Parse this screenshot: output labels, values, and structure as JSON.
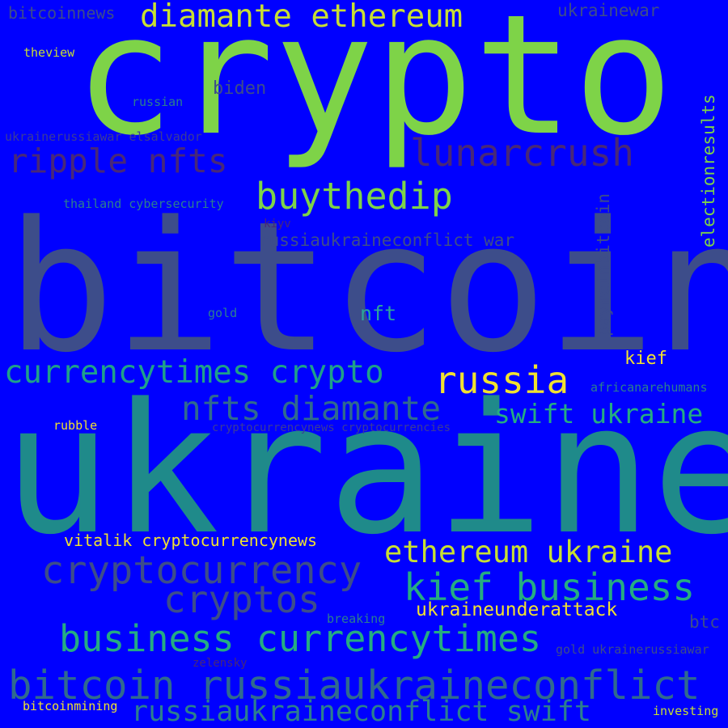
{
  "background": "#0000ff",
  "words": [
    {
      "text": "crypto",
      "color": "#7ed348"
    },
    {
      "text": "bitcoin",
      "color": "#3d4d8a"
    },
    {
      "text": "ukraine",
      "color": "#1f8a8a"
    },
    {
      "text": "diamante ethereum",
      "color": "#c8df32"
    },
    {
      "text": "lunarcrush",
      "color": "#482878"
    },
    {
      "text": "ripple nfts",
      "color": "#482878"
    },
    {
      "text": "buythedip",
      "color": "#7ed348"
    },
    {
      "text": "russiaukraineconflict war",
      "color": "#3d4d8a"
    },
    {
      "text": "currencytimes crypto",
      "color": "#1fa08a"
    },
    {
      "text": "russia",
      "color": "#f0e130"
    },
    {
      "text": "nfts diamante",
      "color": "#306a8e"
    },
    {
      "text": "swift ukraine",
      "color": "#25ac82"
    },
    {
      "text": "ethereum ukraine",
      "color": "#c8df32"
    },
    {
      "text": "kief business",
      "color": "#25ac82"
    },
    {
      "text": "cryptocurrency",
      "color": "#3d4d8a"
    },
    {
      "text": "cryptos",
      "color": "#3d4d8a"
    },
    {
      "text": "business currencytimes",
      "color": "#25ac82"
    },
    {
      "text": "bitcoin russiaukraineconflict",
      "color": "#306a8e"
    },
    {
      "text": "russiaukraineconflict swift",
      "color": "#2c7f8e"
    },
    {
      "text": "ukraineunderattack",
      "color": "#f0e130"
    },
    {
      "text": "vitalik cryptocurrencynews",
      "color": "#f0e130"
    },
    {
      "text": "bitcoinnews",
      "color": "#3d4d8a"
    },
    {
      "text": "ukrainewar",
      "color": "#3d4d8a"
    },
    {
      "text": "theview",
      "color": "#c8df32"
    },
    {
      "text": "biden",
      "color": "#3d4d8a"
    },
    {
      "text": "russian",
      "color": "#2c7f8e"
    },
    {
      "text": "ukrainerussiawar elsalvador",
      "color": "#3b3b9a"
    },
    {
      "text": "thailand cybersecurity",
      "color": "#2c7f8e"
    },
    {
      "text": "kiyv",
      "color": "#482878"
    },
    {
      "text": "gold",
      "color": "#2c7f8e"
    },
    {
      "text": "nft",
      "color": "#2ba59a"
    },
    {
      "text": "kief",
      "color": "#f0e130"
    },
    {
      "text": "africanarehumans",
      "color": "#2c7f8e"
    },
    {
      "text": "rubble",
      "color": "#f0e130"
    },
    {
      "text": "cryptocurrencynews cryptocurrencies",
      "color": "#3b3b9a"
    },
    {
      "text": "breaking",
      "color": "#2c7f8e"
    },
    {
      "text": "btc",
      "color": "#3d4d8a"
    },
    {
      "text": "gold ukrainerussiawar",
      "color": "#3d4d8a"
    },
    {
      "text": "zelensky",
      "color": "#482878"
    },
    {
      "text": "bitcoinmining",
      "color": "#f0e130"
    },
    {
      "text": "investing",
      "color": "#c8df32"
    },
    {
      "text": "electionresults",
      "color": "#7ed348"
    },
    {
      "text": "paymeinbitcoin",
      "color": "#3d4d8a"
    }
  ]
}
